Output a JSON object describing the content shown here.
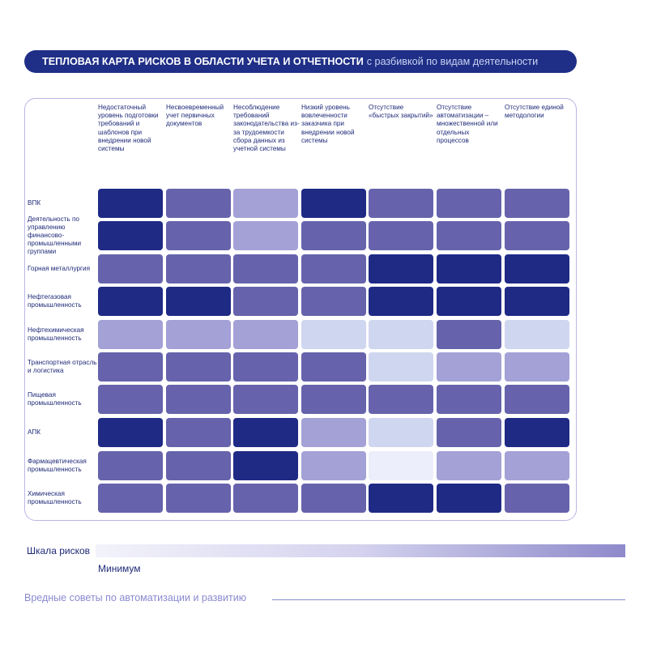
{
  "header": {
    "title_bold": "ТЕПЛОВАЯ КАРТА РИСКОВ В ОБЛАСТИ УЧЕТА И ОТЧЕТНОСТИ",
    "title_light": "с разбивкой по видам деятельности"
  },
  "colors": {
    "level_1": "#eceefb",
    "level_2": "#cfd6f0",
    "level_3": "#a3a1d6",
    "level_4": "#6663ac",
    "level_5": "#1f2a85"
  },
  "chart_data": {
    "type": "heatmap",
    "columns": [
      "Недостаточный уровень подготовки требований и шаблонов при внедрении новой системы",
      "Несвоевременный учет первичных документов",
      "Несоблюдение требований законодательства из-за трудоемкости сбора данных из учетной системы",
      "Низкий уровень вовлеченности заказчика при внедрении новой системы",
      "Отсутствие «быстрых закрытий»",
      "Отсутствие автоматизации – множественной или отдельных процессов",
      "Отсутствие единой методологии"
    ],
    "rows": [
      "ВПК",
      "Деятельность по управлению финансово-промышленными группами",
      "Горная металлургия",
      "Нефтегазовая промышленность",
      "Нефтехимическая промышленность",
      "Транспортная отрасль и логистика",
      "Пищевая промышленность",
      "АПК",
      "Фармацевтическая промышленность",
      "Химическая промышленность"
    ],
    "scale_min": 1,
    "scale_max": 5,
    "values": [
      [
        5,
        4,
        3,
        5,
        4,
        4,
        4
      ],
      [
        5,
        4,
        3,
        4,
        4,
        4,
        4
      ],
      [
        4,
        4,
        4,
        4,
        5,
        5,
        5
      ],
      [
        5,
        5,
        4,
        4,
        5,
        5,
        5
      ],
      [
        3,
        3,
        3,
        2,
        2,
        4,
        2
      ],
      [
        4,
        4,
        4,
        4,
        2,
        3,
        3
      ],
      [
        4,
        4,
        4,
        4,
        4,
        4,
        4
      ],
      [
        5,
        4,
        5,
        3,
        2,
        4,
        5
      ],
      [
        4,
        4,
        5,
        3,
        1,
        3,
        3
      ],
      [
        4,
        4,
        4,
        4,
        5,
        5,
        4
      ]
    ]
  },
  "scale": {
    "label": "Шкала рисков",
    "min_label": "Минимум"
  },
  "footer": {
    "text": "Вредные советы по автоматизации и развитию"
  }
}
